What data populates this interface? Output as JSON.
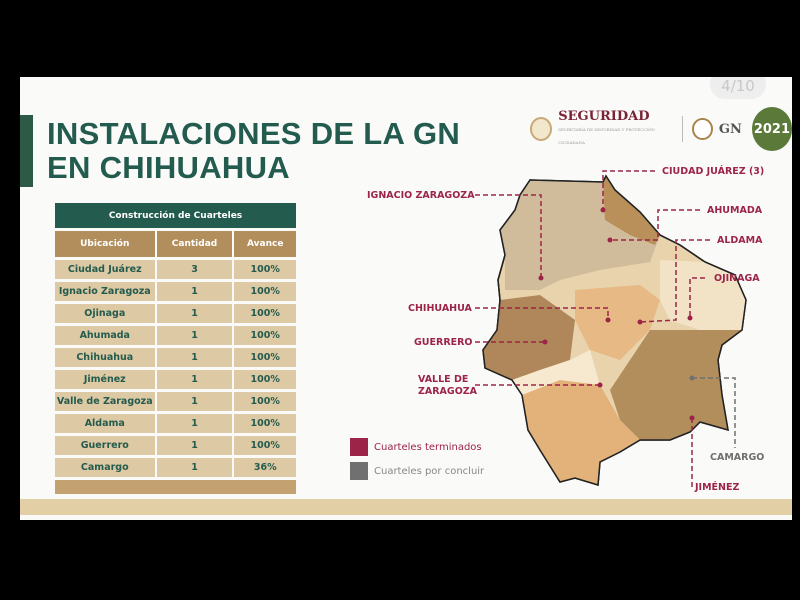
{
  "pager": "4/10",
  "title_line1": "INSTALACIONES DE LA GN",
  "title_line2": "EN CHIHUAHUA",
  "logos": {
    "seguridad": "SEGURIDAD",
    "seguridad_sub": "SECRETARÍA DE SEGURIDAD Y PROTECCIÓN CIUDADANA",
    "gn": "GN",
    "year": "2021"
  },
  "table": {
    "caption": "Construcción de Cuarteles",
    "headers": [
      "Ubicación",
      "Cantidad",
      "Avance"
    ],
    "rows": [
      [
        "Ciudad Juárez",
        "3",
        "100%"
      ],
      [
        "Ignacio Zaragoza",
        "1",
        "100%"
      ],
      [
        "Ojinaga",
        "1",
        "100%"
      ],
      [
        "Ahumada",
        "1",
        "100%"
      ],
      [
        "Chihuahua",
        "1",
        "100%"
      ],
      [
        "Jiménez",
        "1",
        "100%"
      ],
      [
        "Valle de Zaragoza",
        "1",
        "100%"
      ],
      [
        "Aldama",
        "1",
        "100%"
      ],
      [
        "Guerrero",
        "1",
        "100%"
      ],
      [
        "Camargo",
        "1",
        "36%"
      ]
    ]
  },
  "map_labels": {
    "ciudad_juarez": "CIUDAD JUÁREZ (3)",
    "ignacio_zaragoza": "IGNACIO ZARAGOZA",
    "ahumada": "AHUMADA",
    "aldama": "ALDAMA",
    "ojinaga": "OJINAGA",
    "chihuahua": "CHIHUAHUA",
    "guerrero": "GUERRERO",
    "valle_de_zaragoza_1": "VALLE DE",
    "valle_de_zaragoza_2": "ZARAGOZA",
    "camargo": "CAMARGO",
    "jimenez": "JIMÉNEZ"
  },
  "legend": [
    {
      "label": "Cuarteles terminados",
      "color": "#9d2449"
    },
    {
      "label": "Cuarteles por concluir",
      "color": "#707070"
    }
  ],
  "colors": {
    "green": "#235b4e",
    "gold": "#b38e5d",
    "crimson": "#9d2449"
  }
}
